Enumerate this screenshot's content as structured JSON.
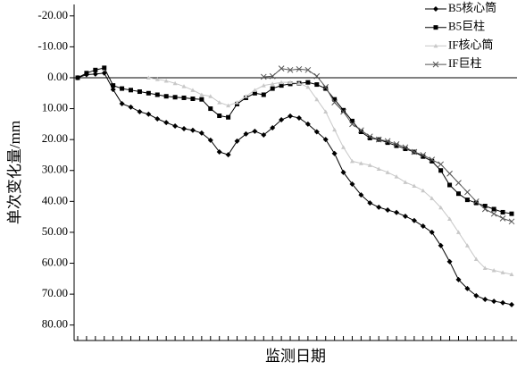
{
  "chart_data": {
    "type": "line",
    "xlabel": "监测日期",
    "ylabel": "单次变化量/mm",
    "categories": [
      null,
      null,
      null,
      null,
      null,
      null,
      null,
      null,
      null,
      null,
      null,
      null,
      null,
      null,
      null,
      null,
      null,
      null,
      null,
      null,
      null,
      null,
      null,
      null,
      null,
      null,
      null,
      null,
      null,
      null,
      null,
      null,
      null,
      null,
      null,
      null,
      null,
      null,
      null,
      null,
      null,
      null,
      null,
      null,
      null,
      null,
      null,
      null,
      null,
      null
    ],
    "ylim": [
      -23.7,
      85
    ],
    "y_inverted": true,
    "zero_line": true,
    "yticks": [
      {
        "value": -20,
        "label": "-20.00"
      },
      {
        "value": -10,
        "label": "-10.00"
      },
      {
        "value": 0,
        "label": "0.00"
      },
      {
        "value": 10,
        "label": "10.00"
      },
      {
        "value": 20,
        "label": "20.00"
      },
      {
        "value": 30,
        "label": "30.00"
      },
      {
        "value": 40,
        "label": "40.00"
      },
      {
        "value": 50,
        "label": "50.00"
      },
      {
        "value": 60,
        "label": "60.00"
      },
      {
        "value": 70,
        "label": "70.00"
      },
      {
        "value": 80,
        "label": "80.00"
      }
    ],
    "series": [
      {
        "name": "B5核心筒",
        "color": "#000000",
        "marker": "diamond",
        "values": [
          0,
          -1,
          -1.2,
          -1.5,
          3.8,
          8.4,
          9.5,
          11,
          11.8,
          13.3,
          14.5,
          15.6,
          16.5,
          17,
          17.9,
          20.2,
          24,
          24.9,
          20.5,
          18.2,
          17.3,
          18.5,
          16.2,
          13.6,
          12.4,
          13,
          15,
          17.5,
          20,
          24.5,
          30.6,
          34.4,
          37.9,
          40.5,
          41.9,
          42.8,
          43.6,
          44.8,
          46.2,
          48,
          50,
          54.3,
          59.5,
          65.3,
          68.2,
          70.5,
          71.7,
          72.3,
          72.8,
          73.4
        ]
      },
      {
        "name": "B5巨柱",
        "color": "#000000",
        "marker": "square",
        "values": [
          0,
          -1.5,
          -2.5,
          -3.2,
          2.5,
          3.5,
          4,
          4.5,
          5,
          5.5,
          6,
          6.3,
          6.5,
          6.8,
          7,
          10,
          12.3,
          12.8,
          8.5,
          6.5,
          5,
          5.5,
          3.5,
          2.5,
          2,
          1.8,
          1.5,
          2.2,
          3.5,
          7,
          10.5,
          14,
          17.5,
          19.5,
          20,
          21,
          22,
          23,
          24,
          25.5,
          27,
          30,
          34.7,
          37.5,
          39.5,
          40.5,
          41.5,
          42.5,
          43.5,
          44
        ]
      },
      {
        "name": "IF核心筒",
        "color": "#c8c8c8",
        "marker": "triangle",
        "values": [
          null,
          null,
          null,
          null,
          null,
          null,
          null,
          null,
          0,
          0.5,
          1,
          1.8,
          2.8,
          4,
          5.5,
          6,
          8,
          9,
          8,
          6,
          4,
          2.5,
          2,
          1.5,
          1.5,
          1.8,
          3,
          7,
          11,
          16.8,
          22.5,
          27,
          27.7,
          28.3,
          29.5,
          30.6,
          32,
          33.8,
          35,
          36.5,
          39,
          42,
          45.7,
          50,
          54.3,
          58.7,
          61.6,
          62.3,
          63,
          63.6
        ]
      },
      {
        "name": "IF巨柱",
        "color": "#555555",
        "marker": "cross",
        "values": [
          null,
          null,
          null,
          null,
          null,
          null,
          null,
          null,
          null,
          null,
          null,
          null,
          null,
          null,
          null,
          null,
          null,
          null,
          null,
          null,
          null,
          -0.3,
          -0.5,
          -3,
          -2.5,
          -2.8,
          -2.5,
          -0.5,
          3,
          8,
          11,
          15,
          17,
          19,
          20,
          20.5,
          21.5,
          22.5,
          24,
          25,
          26.5,
          28,
          31,
          34,
          37,
          40,
          42.5,
          44,
          45.5,
          46.5
        ]
      }
    ]
  }
}
